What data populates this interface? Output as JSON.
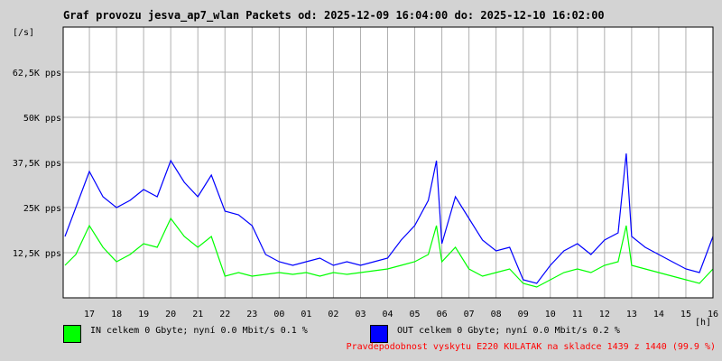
{
  "chart_data": {
    "type": "line",
    "title": "Graf provozu jesva_ap7_wlan Packets od: 2025-12-09 16:04:00 do: 2025-12-10 16:02:00",
    "ylabel": "[/s]",
    "xlabel": "[h]",
    "ylim": [
      0,
      75000
    ],
    "y_ticks": [
      {
        "value": 12500,
        "label": "12,5K pps"
      },
      {
        "value": 25000,
        "label": "25K pps"
      },
      {
        "value": 37500,
        "label": "37,5K pps"
      },
      {
        "value": 50000,
        "label": "50K pps"
      },
      {
        "value": 62500,
        "label": "62,5K pps"
      }
    ],
    "x_ticks": [
      "17",
      "18",
      "19",
      "20",
      "21",
      "22",
      "23",
      "00",
      "01",
      "02",
      "03",
      "04",
      "05",
      "06",
      "07",
      "08",
      "09",
      "10",
      "11",
      "12",
      "13",
      "14",
      "15",
      "16"
    ],
    "grid": true,
    "series": [
      {
        "name": "IN",
        "color": "#00ff00",
        "x": [
          16.1,
          16.5,
          17.0,
          17.5,
          18.0,
          18.5,
          19.0,
          19.5,
          20.0,
          20.5,
          21.0,
          21.5,
          22.0,
          22.5,
          23.0,
          23.5,
          24.0,
          24.5,
          25.0,
          25.5,
          26.0,
          26.5,
          27.0,
          27.5,
          28.0,
          28.5,
          29.0,
          29.5,
          29.8,
          30.0,
          30.5,
          31.0,
          31.5,
          32.0,
          32.5,
          33.0,
          33.5,
          34.0,
          34.5,
          35.0,
          35.5,
          36.0,
          36.5,
          36.8,
          37.0,
          37.5,
          38.0,
          38.5,
          39.0,
          39.5,
          40.0
        ],
        "values": [
          9000,
          12000,
          20000,
          14000,
          10000,
          12000,
          15000,
          14000,
          22000,
          17000,
          14000,
          17000,
          6000,
          7000,
          6000,
          6500,
          7000,
          6500,
          7000,
          6000,
          7000,
          6500,
          7000,
          7500,
          8000,
          9000,
          10000,
          12000,
          20000,
          10000,
          14000,
          8000,
          6000,
          7000,
          8000,
          4000,
          3000,
          5000,
          7000,
          8000,
          7000,
          9000,
          10000,
          20000,
          9000,
          8000,
          7000,
          6000,
          5000,
          4000,
          8000
        ]
      },
      {
        "name": "OUT",
        "color": "#0000ff",
        "x": [
          16.1,
          16.5,
          17.0,
          17.5,
          18.0,
          18.5,
          19.0,
          19.5,
          20.0,
          20.5,
          21.0,
          21.5,
          22.0,
          22.5,
          23.0,
          23.5,
          24.0,
          24.5,
          25.0,
          25.5,
          26.0,
          26.5,
          27.0,
          27.5,
          28.0,
          28.5,
          29.0,
          29.5,
          29.8,
          30.0,
          30.5,
          31.0,
          31.5,
          32.0,
          32.5,
          33.0,
          33.5,
          34.0,
          34.5,
          35.0,
          35.5,
          36.0,
          36.5,
          36.8,
          37.0,
          37.5,
          38.0,
          38.5,
          39.0,
          39.5,
          40.0
        ],
        "values": [
          17000,
          25000,
          35000,
          28000,
          25000,
          27000,
          30000,
          28000,
          38000,
          32000,
          28000,
          34000,
          24000,
          23000,
          20000,
          12000,
          10000,
          9000,
          10000,
          11000,
          9000,
          10000,
          9000,
          10000,
          11000,
          16000,
          20000,
          27000,
          38000,
          15000,
          28000,
          22000,
          16000,
          13000,
          14000,
          5000,
          4000,
          9000,
          13000,
          15000,
          12000,
          16000,
          18000,
          40000,
          17000,
          14000,
          12000,
          10000,
          8000,
          7000,
          17000
        ]
      }
    ]
  },
  "legend": {
    "in_color": "#00ff00",
    "in_text": "IN celkem 0 Gbyte; nyní   0.0 Mbit/s 0.1 %",
    "out_color": "#0000ff",
    "out_text": "OUT celkem 0 Gbyte; nyní   0.0 Mbit/s 0.2 %"
  },
  "footer_note": "Pravdepodobnost vyskytu E220 KULATAK na skladce 1439 z 1440 (99.9 %)"
}
